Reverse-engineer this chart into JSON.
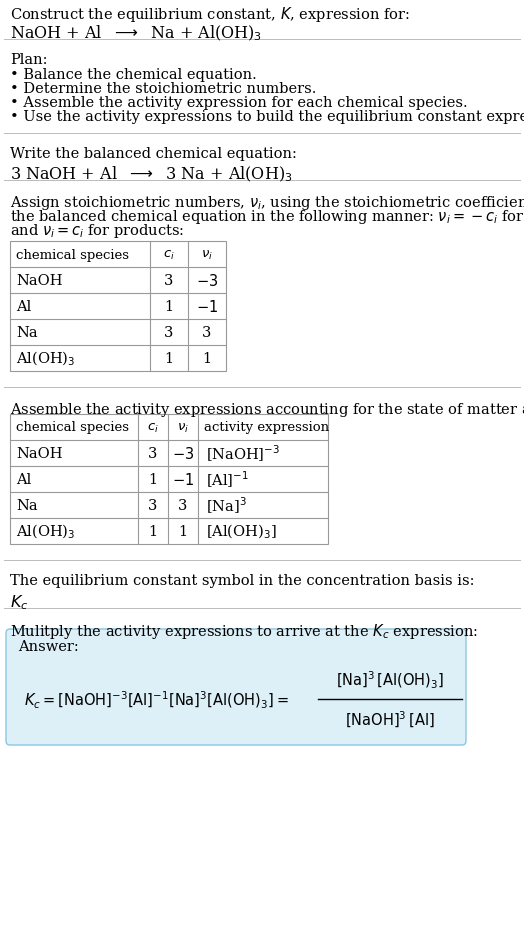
{
  "title_line1": "Construct the equilibrium constant, $K$, expression for:",
  "title_line2": "NaOH + Al  $\\longrightarrow$  Na + Al(OH)$_3$",
  "plan_header": "Plan:",
  "plan_items": [
    "• Balance the chemical equation.",
    "• Determine the stoichiometric numbers.",
    "• Assemble the activity expression for each chemical species.",
    "• Use the activity expressions to build the equilibrium constant expression."
  ],
  "balanced_header": "Write the balanced chemical equation:",
  "balanced_eq": "3 NaOH + Al  $\\longrightarrow$  3 Na + Al(OH)$_3$",
  "stoich_header_parts": [
    "Assign stoichiometric numbers, $\\nu_i$, using the stoichiometric coefficients, $c_i$, from",
    "the balanced chemical equation in the following manner: $\\nu_i = -c_i$ for reactants",
    "and $\\nu_i = c_i$ for products:"
  ],
  "table1_headers": [
    "chemical species",
    "$c_i$",
    "$\\nu_i$"
  ],
  "table1_rows": [
    [
      "NaOH",
      "3",
      "$-3$"
    ],
    [
      "Al",
      "1",
      "$-1$"
    ],
    [
      "Na",
      "3",
      "3"
    ],
    [
      "Al(OH)$_3$",
      "1",
      "1"
    ]
  ],
  "activity_header": "Assemble the activity expressions accounting for the state of matter and $\\nu_i$:",
  "table2_headers": [
    "chemical species",
    "$c_i$",
    "$\\nu_i$",
    "activity expression"
  ],
  "table2_rows": [
    [
      "NaOH",
      "3",
      "$-3$",
      "[NaOH]$^{-3}$"
    ],
    [
      "Al",
      "1",
      "$-1$",
      "[Al]$^{-1}$"
    ],
    [
      "Na",
      "3",
      "3",
      "[Na]$^3$"
    ],
    [
      "Al(OH)$_3$",
      "1",
      "1",
      "[Al(OH)$_3$]"
    ]
  ],
  "kc_header": "The equilibrium constant symbol in the concentration basis is:",
  "kc_symbol": "$K_c$",
  "multiply_header": "Mulitply the activity expressions to arrive at the $K_c$ expression:",
  "answer_label": "Answer:",
  "answer_box_color": "#ddf0f8",
  "answer_box_border": "#88c8e0",
  "bg_color": "#ffffff",
  "text_color": "#000000",
  "table_border_color": "#999999",
  "font_size": 10.5,
  "line_color": "#bbbbbb"
}
